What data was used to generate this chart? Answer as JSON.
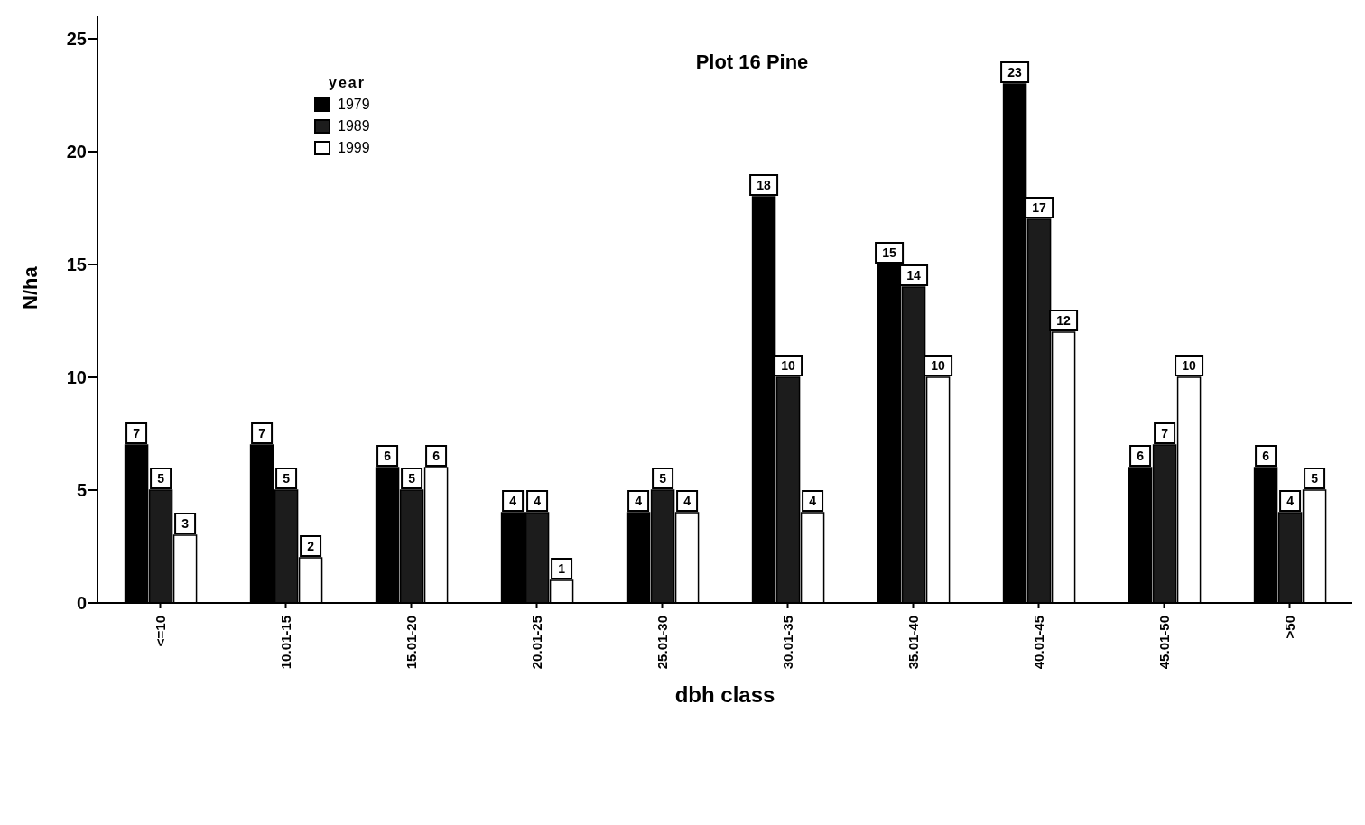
{
  "chart_data": {
    "type": "bar",
    "title": "Plot 16 Pine",
    "xlabel": "dbh class",
    "ylabel": "N/ha",
    "legend_title": "year",
    "categories": [
      "<=10",
      "10.01-15",
      "15.01-20",
      "20.01-25",
      "25.01-30",
      "30.01-35",
      "35.01-40",
      "40.01-45",
      "45.01-50",
      ">50"
    ],
    "series": [
      {
        "name": "1979",
        "color": "#000000",
        "values": [
          7,
          7,
          6,
          4,
          4,
          18,
          15,
          23,
          6,
          6
        ]
      },
      {
        "name": "1989",
        "color": "#1c1c1c",
        "values": [
          5,
          5,
          5,
          4,
          5,
          10,
          14,
          17,
          7,
          4
        ]
      },
      {
        "name": "1999",
        "color": "#ffffff",
        "values": [
          3,
          2,
          6,
          1,
          4,
          4,
          10,
          12,
          10,
          5
        ]
      }
    ],
    "ylim": [
      0,
      26
    ],
    "yticks": [
      0,
      5,
      10,
      15,
      20,
      25
    ],
    "grid": false,
    "legend": "top left",
    "data_labels": true
  }
}
